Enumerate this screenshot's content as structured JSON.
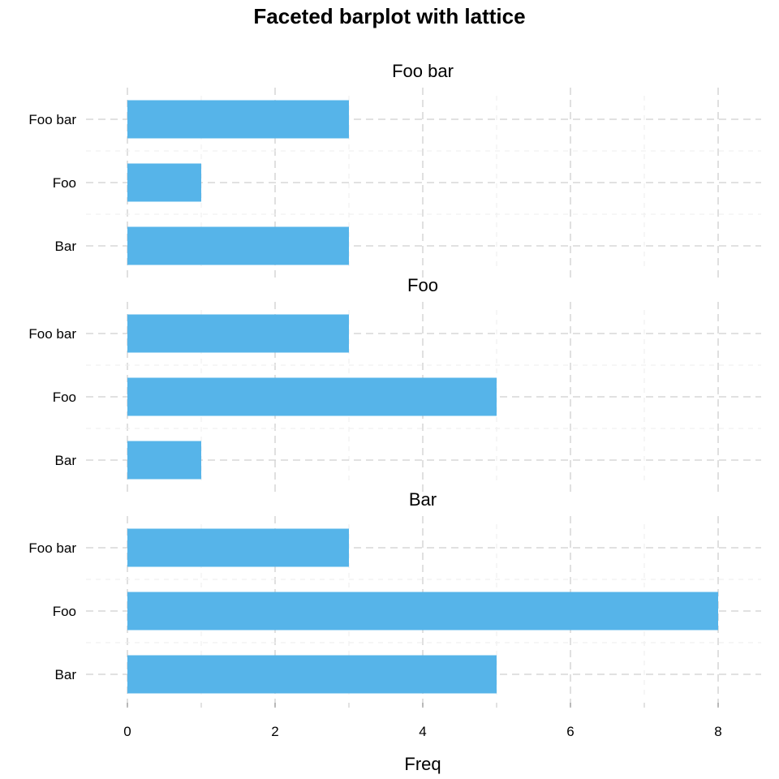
{
  "chart_data": {
    "type": "bar",
    "orientation": "horizontal",
    "title": "Faceted barplot with lattice",
    "xlabel": "Freq",
    "ylabel": "",
    "xlim": [
      0,
      8.4
    ],
    "x_ticks": [
      0,
      2,
      4,
      6,
      8
    ],
    "x_tick_labels": [
      "0",
      "2",
      "4",
      "6",
      "8"
    ],
    "grid": true,
    "bar_color": "#56b4e9",
    "categories": [
      "Bar",
      "Foo",
      "Foo bar"
    ],
    "panels": [
      {
        "name": "Foo bar",
        "values": [
          3,
          1,
          3
        ]
      },
      {
        "name": "Foo",
        "values": [
          1,
          5,
          3
        ]
      },
      {
        "name": "Bar",
        "values": [
          5,
          8,
          3
        ]
      }
    ]
  }
}
